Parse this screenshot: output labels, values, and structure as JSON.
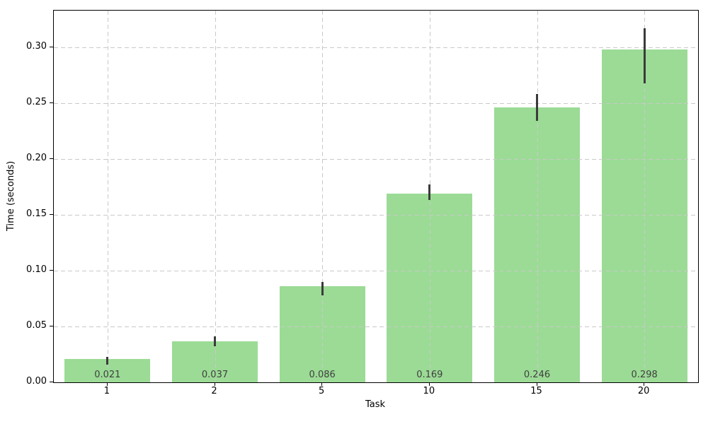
{
  "chart_data": {
    "type": "bar",
    "title": "",
    "xlabel": "Task",
    "ylabel": "Time (seconds)",
    "categories": [
      "1",
      "2",
      "5",
      "10",
      "15",
      "20"
    ],
    "values": [
      0.021,
      0.037,
      0.086,
      0.169,
      0.246,
      0.298
    ],
    "value_labels": [
      "0.021",
      "0.037",
      "0.086",
      "0.169",
      "0.246",
      "0.298"
    ],
    "error_low": [
      0.016,
      0.032,
      0.078,
      0.163,
      0.234,
      0.268
    ],
    "error_high": [
      0.023,
      0.041,
      0.09,
      0.177,
      0.258,
      0.317
    ],
    "ytick_labels": [
      "0.00",
      "0.05",
      "0.10",
      "0.15",
      "0.20",
      "0.25",
      "0.30"
    ],
    "ytick_values": [
      0.0,
      0.05,
      0.1,
      0.15,
      0.2,
      0.25,
      0.3
    ],
    "ylim": [
      0,
      0.3329
    ],
    "grid": "dashed-both-axes-above-bars",
    "legend": "none",
    "colors": {
      "bar": "#9BDB95",
      "error_bar": "#3b3b3b",
      "value_label": "#3f3f3f",
      "grid": "#c9c9c9",
      "axis": "#000000",
      "background": "#ffffff"
    }
  }
}
